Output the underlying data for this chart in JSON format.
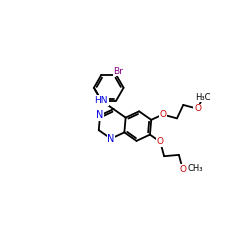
{
  "bg_color": "#ffffff",
  "bond_color": "#000000",
  "N_color": "#0000dd",
  "O_color": "#cc0000",
  "Br_color": "#880088",
  "C_color": "#000000",
  "lw": 1.3,
  "fs": 6.5,
  "B": 0.6,
  "figsize": [
    2.5,
    2.5
  ],
  "dpi": 100,
  "xlim": [
    -0.5,
    9.5
  ],
  "ylim": [
    -0.5,
    9.5
  ]
}
